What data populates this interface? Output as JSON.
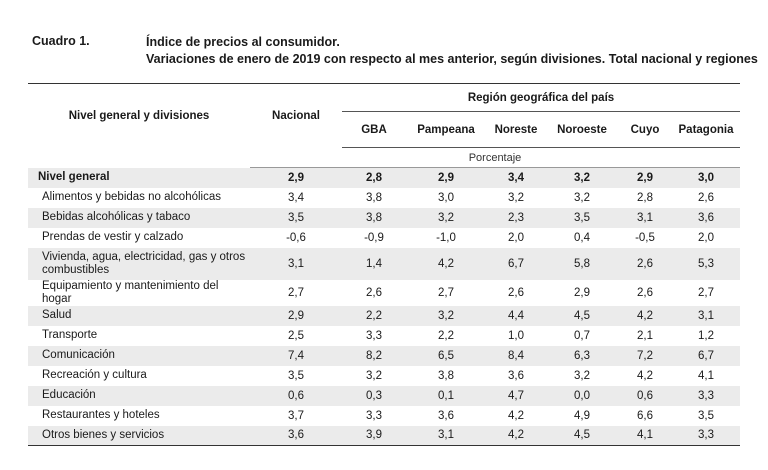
{
  "header": {
    "cuadro": "Cuadro 1.",
    "title_line1": "Índice de precios al consumidor.",
    "title_line2": "Variaciones de enero de 2019 con respecto al mes anterior, según divisiones. Total nacional y regiones"
  },
  "table": {
    "col_name": "Nivel general y divisiones",
    "col_nacional": "Nacional",
    "region_header": "Región geográfica del país",
    "regions": [
      "GBA",
      "Pampeana",
      "Noreste",
      "Noroeste",
      "Cuyo",
      "Patagonia"
    ],
    "unit": "Porcentaje",
    "rows": [
      {
        "name": "Nivel general",
        "values": [
          "2,9",
          "2,8",
          "2,9",
          "3,4",
          "3,2",
          "2,9",
          "3,0"
        ]
      },
      {
        "name": "Alimentos y bebidas no alcohólicas",
        "values": [
          "3,4",
          "3,8",
          "3,0",
          "3,2",
          "3,2",
          "2,8",
          "2,6"
        ]
      },
      {
        "name": "Bebidas alcohólicas y tabaco",
        "values": [
          "3,5",
          "3,8",
          "3,2",
          "2,3",
          "3,5",
          "3,1",
          "3,6"
        ]
      },
      {
        "name": "Prendas de vestir y calzado",
        "values": [
          "-0,6",
          "-0,9",
          "-1,0",
          "2,0",
          "0,4",
          "-0,5",
          "2,0"
        ]
      },
      {
        "name": "Vivienda, agua, electricidad, gas y otros combustibles",
        "values": [
          "3,1",
          "1,4",
          "4,2",
          "6,7",
          "5,8",
          "2,6",
          "5,3"
        ]
      },
      {
        "name": "Equipamiento y mantenimiento del hogar",
        "values": [
          "2,7",
          "2,6",
          "2,7",
          "2,6",
          "2,9",
          "2,6",
          "2,7"
        ]
      },
      {
        "name": "Salud",
        "values": [
          "2,9",
          "2,2",
          "3,2",
          "4,4",
          "4,5",
          "4,2",
          "3,1"
        ]
      },
      {
        "name": "Transporte",
        "values": [
          "2,5",
          "3,3",
          "2,2",
          "1,0",
          "0,7",
          "2,1",
          "1,2"
        ]
      },
      {
        "name": "Comunicación",
        "values": [
          "7,4",
          "8,2",
          "6,5",
          "8,4",
          "6,3",
          "7,2",
          "6,7"
        ]
      },
      {
        "name": "Recreación y cultura",
        "values": [
          "3,5",
          "3,2",
          "3,8",
          "3,6",
          "3,2",
          "4,2",
          "4,1"
        ]
      },
      {
        "name": "Educación",
        "values": [
          "0,6",
          "0,3",
          "0,1",
          "4,7",
          "0,0",
          "0,6",
          "3,3"
        ]
      },
      {
        "name": "Restaurantes y hoteles",
        "values": [
          "3,7",
          "3,3",
          "3,6",
          "4,2",
          "4,9",
          "6,6",
          "3,5"
        ]
      },
      {
        "name": "Otros bienes y servicios",
        "values": [
          "3,6",
          "3,9",
          "3,1",
          "4,2",
          "4,5",
          "4,1",
          "3,3"
        ]
      }
    ]
  }
}
